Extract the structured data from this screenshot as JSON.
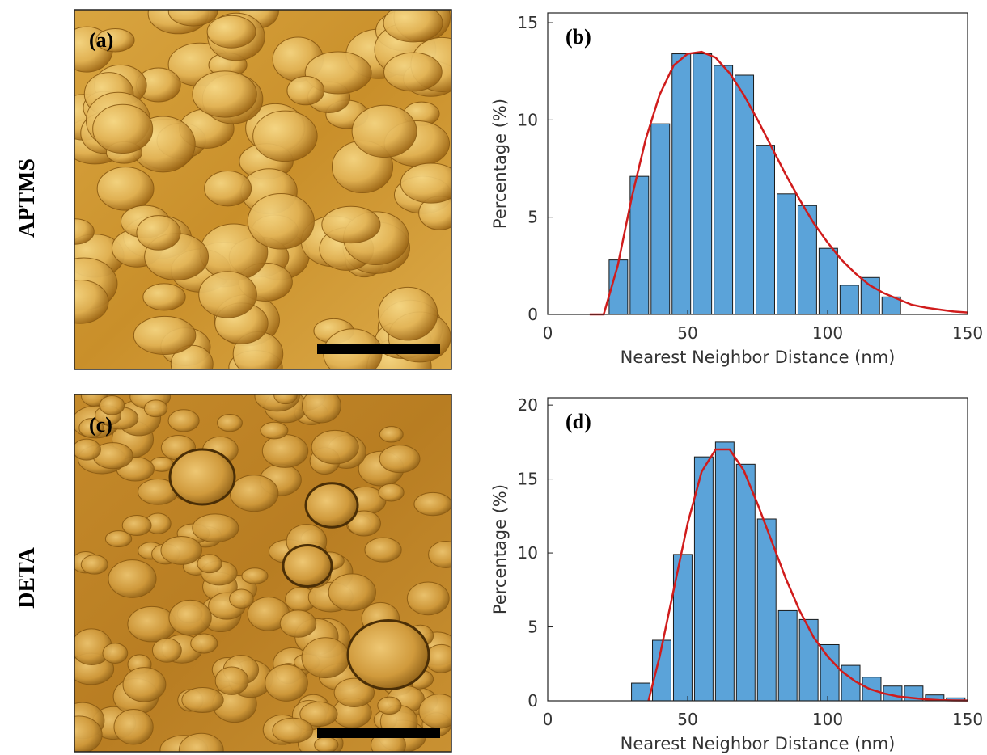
{
  "images": [
    {
      "row_label": "APTMS",
      "label": "(a)"
    },
    {
      "row_label": "DETA",
      "label": "(c)"
    }
  ],
  "chart_data": [
    {
      "type": "histogram",
      "panel_label": "(b)",
      "xlabel": "Nearest Neighbor Distance (nm)",
      "ylabel": "Percentage (%)",
      "bins": [
        21.5,
        29,
        36.5,
        44,
        51.5,
        59,
        66.5,
        74,
        81.5,
        89,
        96.5,
        104,
        111.5,
        119,
        126.5
      ],
      "values": [
        2.8,
        7.1,
        9.8,
        13.4,
        13.4,
        12.8,
        12.3,
        8.7,
        6.2,
        5.6,
        3.4,
        1.5,
        1.9,
        0.9
      ],
      "color": "#5ba3d9",
      "fit_x": [
        15,
        20,
        25,
        30,
        35,
        40,
        45,
        50,
        55,
        60,
        65,
        70,
        75,
        80,
        85,
        90,
        95,
        100,
        105,
        110,
        115,
        120,
        125,
        130,
        135,
        140,
        145,
        150
      ],
      "fit_values": [
        0,
        0,
        2.5,
        6,
        9,
        11.3,
        12.8,
        13.4,
        13.5,
        13.2,
        12.4,
        11.3,
        10,
        8.6,
        7.2,
        5.9,
        4.7,
        3.7,
        2.8,
        2.1,
        1.5,
        1.1,
        0.8,
        0.5,
        0.35,
        0.25,
        0.15,
        0.1
      ],
      "fit_color": "#d01c1c",
      "xlim": [
        0,
        150
      ],
      "xticks": [
        0,
        50,
        100,
        150
      ],
      "ylim": [
        0,
        15.5
      ],
      "yticks": [
        0,
        5,
        10,
        15
      ]
    },
    {
      "type": "histogram",
      "panel_label": "(d)",
      "xlabel": "Nearest Neighbor Distance (nm)",
      "ylabel": "Percentage (%)",
      "bins": [
        29.5,
        37,
        44.5,
        52,
        59.5,
        67,
        74.5,
        82,
        89.5,
        97,
        104.5,
        112,
        119.5,
        127,
        134.5,
        142,
        149.5
      ],
      "values": [
        1.2,
        4.1,
        9.9,
        16.5,
        17.5,
        16.0,
        12.3,
        6.1,
        5.5,
        3.8,
        2.4,
        1.6,
        1.0,
        1.0,
        0.4,
        0.2
      ],
      "color": "#5ba3d9",
      "fit_x": [
        36,
        40,
        45,
        50,
        55,
        60,
        65,
        70,
        75,
        80,
        85,
        90,
        95,
        100,
        105,
        110,
        115,
        120,
        125,
        130,
        135,
        140,
        145,
        150
      ],
      "fit_values": [
        0,
        3,
        7.5,
        12,
        15.5,
        17,
        17,
        15.6,
        13.3,
        10.8,
        8.3,
        6.1,
        4.3,
        3,
        2,
        1.3,
        0.8,
        0.5,
        0.3,
        0.2,
        0.1,
        0.05,
        0.03,
        0.02
      ],
      "fit_color": "#d01c1c",
      "xlim": [
        0,
        150
      ],
      "xticks": [
        0,
        50,
        100,
        150
      ],
      "ylim": [
        0,
        20.5
      ],
      "yticks": [
        0,
        5,
        10,
        15,
        20
      ]
    }
  ]
}
